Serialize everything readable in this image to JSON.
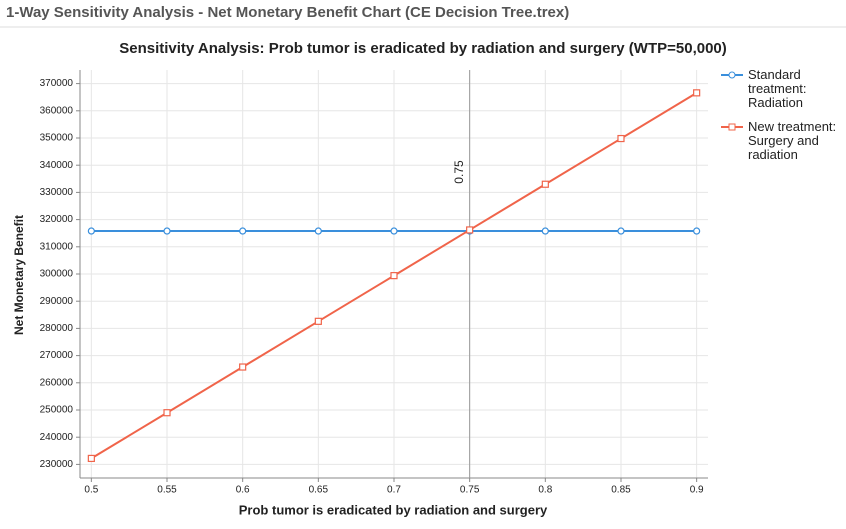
{
  "window_title": "1-Way Sensitivity Analysis - Net Monetary Benefit Chart (CE Decision Tree.trex)",
  "chart_data": {
    "type": "line",
    "title": "Sensitivity Analysis: Prob tumor is eradicated by radiation and surgery (WTP=50,000)",
    "x_label": "Prob tumor is eradicated by radiation and surgery",
    "y_label": "Net Monetary Benefit",
    "x": [
      0.5,
      0.55,
      0.6,
      0.65,
      0.7,
      0.75,
      0.8,
      0.85,
      0.9
    ],
    "series": [
      {
        "name": "Standard treatment: Radiation",
        "color": "#3a8fdc",
        "marker": "circle",
        "values": [
          315800,
          315800,
          315800,
          315800,
          315800,
          315800,
          315800,
          315800,
          315800
        ]
      },
      {
        "name": "New treatment: Surgery and radiation",
        "color": "#f0644a",
        "marker": "square",
        "values": [
          232200,
          249000,
          265800,
          282600,
          299400,
          316200,
          333000,
          349800,
          366600
        ]
      }
    ],
    "threshold": 0.75,
    "xlim": [
      0.4925,
      0.9075
    ],
    "ylim": [
      225000,
      375000
    ],
    "xticks": [
      0.5,
      0.55,
      0.6,
      0.65,
      0.7,
      0.75,
      0.8,
      0.85,
      0.9
    ],
    "yticks": [
      230000,
      240000,
      250000,
      260000,
      270000,
      280000,
      290000,
      300000,
      310000,
      320000,
      330000,
      340000,
      350000,
      360000,
      370000
    ],
    "grid": true,
    "legend": "right"
  }
}
